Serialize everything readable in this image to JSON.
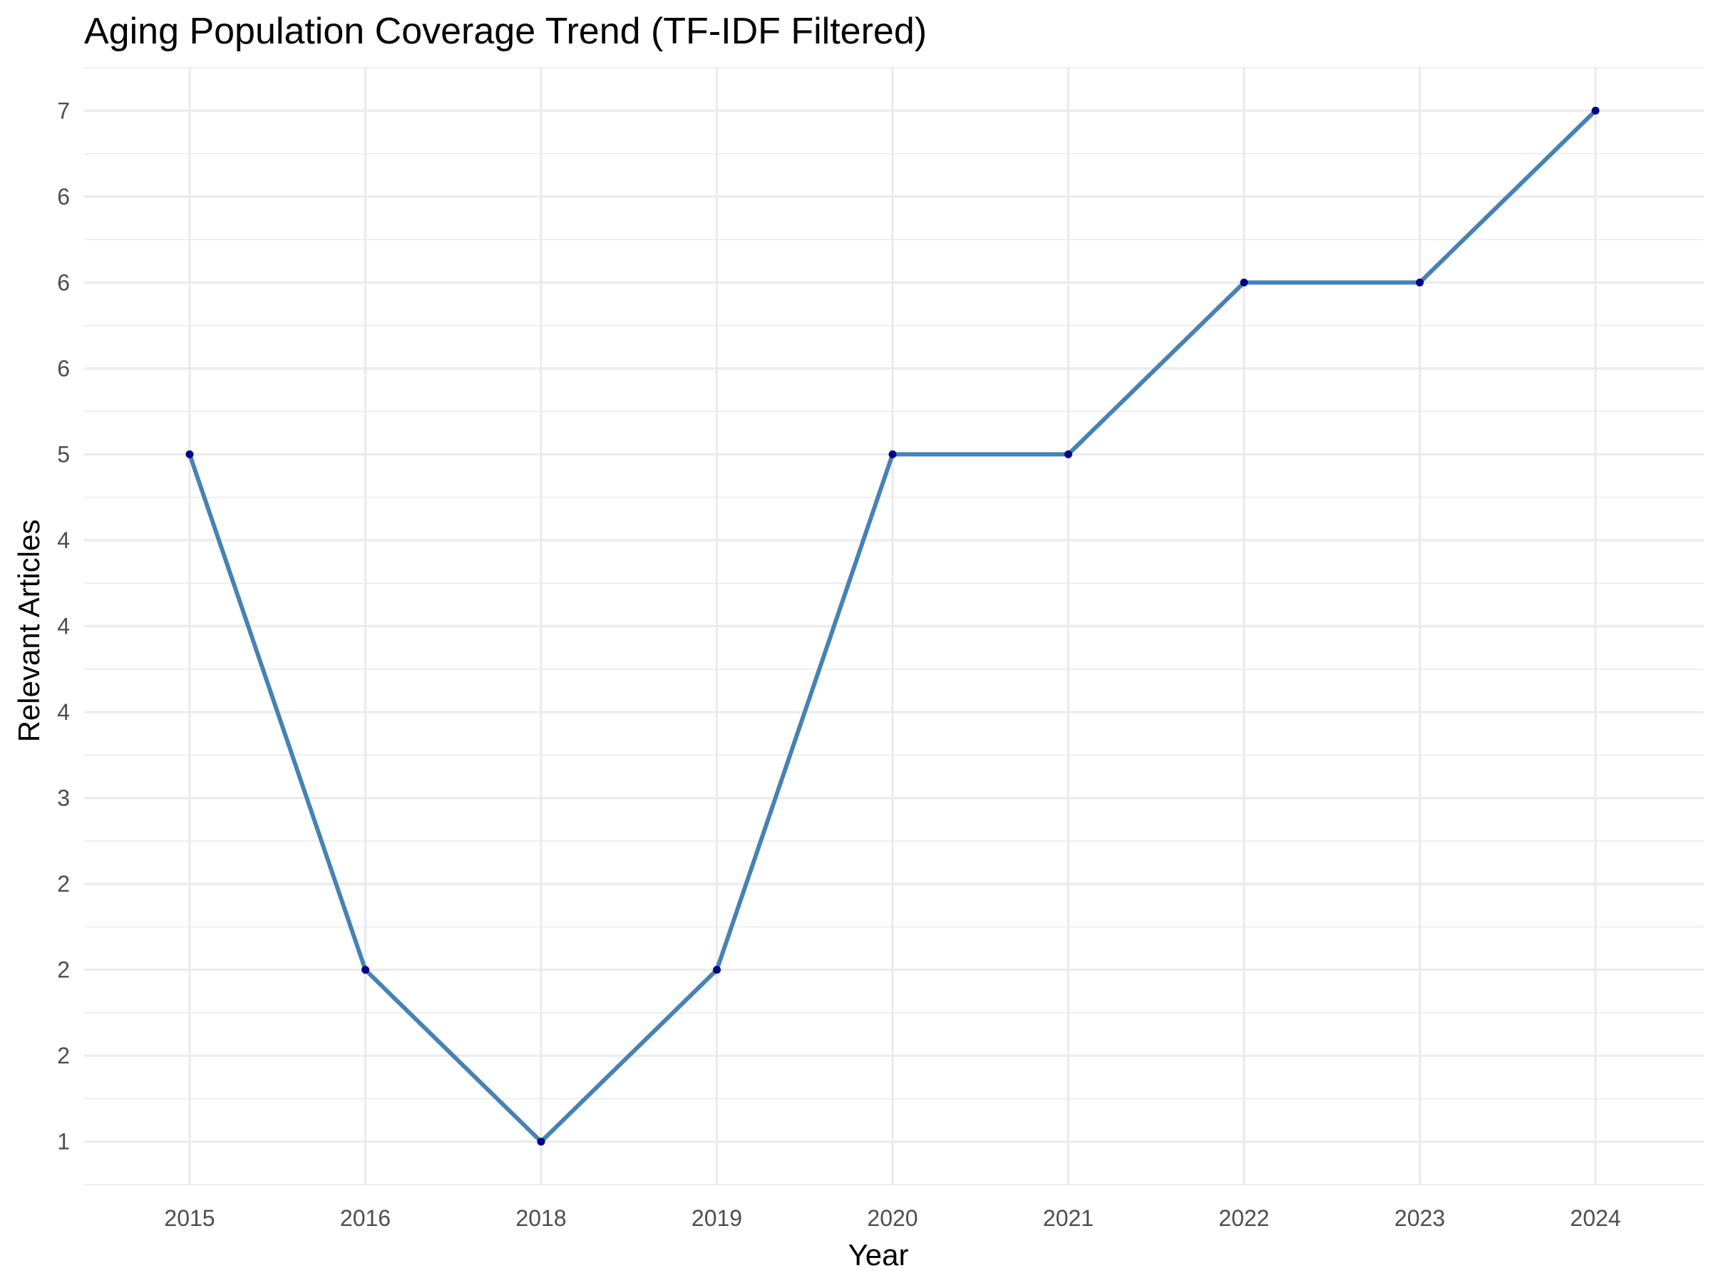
{
  "chart_data": {
    "type": "line",
    "title": "Aging Population Coverage Trend (TF-IDF Filtered)",
    "xlabel": "Year",
    "ylabel": "Relevant Articles",
    "categories": [
      "2015",
      "2016",
      "2018",
      "2019",
      "2020",
      "2021",
      "2022",
      "2023",
      "2024"
    ],
    "y_tick_labels": [
      "1",
      "2",
      "2",
      "2",
      "3",
      "4",
      "4",
      "4",
      "5",
      "6",
      "6",
      "6",
      "7"
    ],
    "ylim": [
      0.75,
      7.25
    ],
    "series": [
      {
        "values": [
          5,
          2,
          1,
          2,
          5,
          5,
          6,
          6,
          7
        ]
      }
    ],
    "y_positions": [
      5,
      2,
      1,
      2,
      5,
      5,
      6,
      6,
      7
    ],
    "grid": true,
    "legend": "none",
    "colors": {
      "line": "#4682b4",
      "point": "#00008b",
      "grid": "#ebebeb",
      "text": "#4d4d4d"
    }
  }
}
